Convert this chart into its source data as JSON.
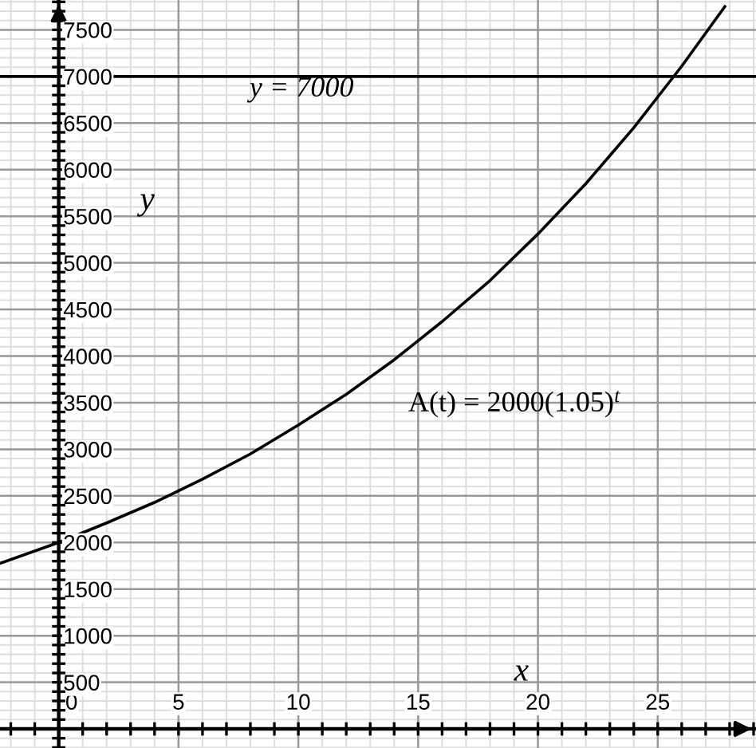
{
  "chart_data": {
    "type": "line",
    "xlabel": "x",
    "ylabel": "y",
    "x": [
      -2.4,
      0,
      2,
      4,
      6,
      8,
      10,
      12,
      14,
      16,
      18,
      20,
      22,
      24,
      26,
      27.8
    ],
    "series": [
      {
        "name": "A(t) = 2000(1.05)$^{t}$",
        "color": "#000000",
        "values": [
          1780,
          2000,
          2210,
          2430,
          2680,
          2950,
          3260,
          3590,
          3960,
          4370,
          4810,
          5310,
          5850,
          6450,
          7110,
          7750
        ]
      }
    ],
    "ref_lines": [
      {
        "axis": "y",
        "value": 7000,
        "label": "y = 7000",
        "color": "#000000"
      }
    ],
    "xlim": [
      -2.45,
      29.1
    ],
    "ylim": [
      -205,
      7820
    ],
    "xticks": [
      0,
      5,
      10,
      15,
      20,
      25
    ],
    "yticks": [
      500,
      1000,
      1500,
      2000,
      2500,
      3000,
      3500,
      4000,
      4500,
      5000,
      5500,
      6000,
      6500,
      7000,
      7500
    ],
    "grid": true,
    "legend": false,
    "marker": "none",
    "line_style": "solid"
  }
}
